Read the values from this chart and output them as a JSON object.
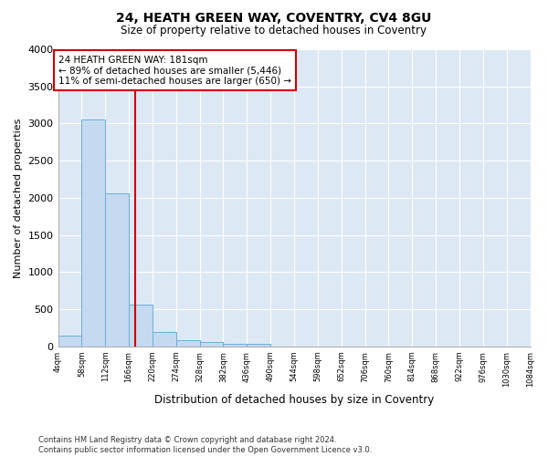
{
  "title": "24, HEATH GREEN WAY, COVENTRY, CV4 8GU",
  "subtitle": "Size of property relative to detached houses in Coventry",
  "xlabel": "Distribution of detached houses by size in Coventry",
  "ylabel": "Number of detached properties",
  "property_size": 181,
  "bin_edges": [
    4,
    58,
    112,
    166,
    220,
    274,
    328,
    382,
    436,
    490,
    544,
    598,
    652,
    706,
    760,
    814,
    868,
    922,
    976,
    1030,
    1084
  ],
  "bar_heights": [
    140,
    3060,
    2060,
    560,
    200,
    80,
    60,
    40,
    30,
    0,
    0,
    0,
    0,
    0,
    0,
    0,
    0,
    0,
    0,
    0
  ],
  "bar_color": "#c5d9f0",
  "bar_edge_color": "#6baed6",
  "vline_color": "#cc0000",
  "annotation_line1": "24 HEATH GREEN WAY: 181sqm",
  "annotation_line2": "← 89% of detached houses are smaller (5,446)",
  "annotation_line3": "11% of semi-detached houses are larger (650) →",
  "annotation_box_color": "#cc0000",
  "ylim": [
    0,
    4000
  ],
  "yticks": [
    0,
    500,
    1000,
    1500,
    2000,
    2500,
    3000,
    3500,
    4000
  ],
  "bg_color": "#dde8f5",
  "fig_bg_color": "#ffffff",
  "grid_color": "#ffffff",
  "footer_line1": "Contains HM Land Registry data © Crown copyright and database right 2024.",
  "footer_line2": "Contains public sector information licensed under the Open Government Licence v3.0."
}
